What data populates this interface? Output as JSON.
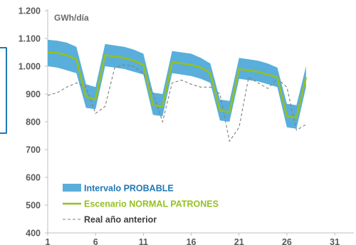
{
  "chart_data": {
    "type": "line",
    "title": "",
    "ylabel_unit": "GWh/día",
    "xlabel": "",
    "ylim": [
      400,
      1200
    ],
    "xlim": [
      1,
      33
    ],
    "y_ticks": [
      "400",
      "500",
      "600",
      "700",
      "800",
      "900",
      "1.000",
      "1.100",
      "1.200"
    ],
    "y_tick_values": [
      400,
      500,
      600,
      700,
      800,
      900,
      1000,
      1100,
      1200
    ],
    "x_ticks": [
      "1",
      "6",
      "11",
      "16",
      "21",
      "26",
      "31"
    ],
    "x_tick_values": [
      1,
      6,
      11,
      16,
      21,
      26,
      31
    ],
    "grid": false,
    "legend_position": "bottom-left",
    "colors": {
      "band": "#5aaedb",
      "normal": "#94c11f",
      "prior": "#7f7f7f",
      "axis": "#bfbfbf",
      "edge": "#1f78b4"
    },
    "x": [
      1,
      2,
      3,
      4,
      5,
      6,
      7,
      8,
      9,
      10,
      11,
      12,
      13,
      14,
      15,
      16,
      17,
      18,
      19,
      20,
      21,
      22,
      23,
      24,
      25,
      26,
      27,
      28
    ],
    "series": [
      {
        "name": "Intervalo PROBABLE",
        "kind": "band",
        "upper": [
          1095,
          1092,
          1085,
          1070,
          935,
          925,
          1080,
          1075,
          1070,
          1060,
          1045,
          905,
          900,
          1055,
          1050,
          1045,
          1030,
          1010,
          880,
          875,
          1030,
          1025,
          1020,
          1010,
          995,
          865,
          860,
          1000
        ],
        "lower": [
          1000,
          995,
          985,
          975,
          850,
          845,
          1000,
          995,
          990,
          980,
          970,
          825,
          820,
          975,
          970,
          965,
          955,
          940,
          805,
          800,
          955,
          950,
          945,
          935,
          925,
          780,
          775,
          925
        ]
      },
      {
        "name": "Escenario NORMAL PATRONES",
        "kind": "line",
        "values": [
          1050,
          1048,
          1040,
          1025,
          890,
          880,
          1040,
          1035,
          1030,
          1020,
          1005,
          860,
          855,
          1015,
          1010,
          1005,
          995,
          975,
          840,
          835,
          990,
          985,
          980,
          970,
          960,
          820,
          815,
          960
        ]
      },
      {
        "name": "Real año anterior",
        "kind": "dashed",
        "values": [
          895,
          905,
          925,
          940,
          925,
          830,
          855,
          995,
          1005,
          1000,
          975,
          905,
          800,
          940,
          950,
          935,
          925,
          925,
          900,
          730,
          780,
          960,
          940,
          920,
          955,
          925,
          770,
          790
        ]
      }
    ]
  }
}
